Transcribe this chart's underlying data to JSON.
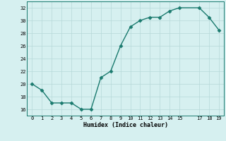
{
  "title": "",
  "xlabel": "Humidex (Indice chaleur)",
  "x_data": [
    0,
    1,
    2,
    3,
    4,
    5,
    6,
    7,
    8,
    9,
    10,
    11,
    12,
    13,
    14,
    15,
    17,
    18,
    19
  ],
  "y_data": [
    20,
    19,
    17,
    17,
    17,
    16,
    16,
    21,
    22,
    26,
    29,
    30,
    30.5,
    30.5,
    31.5,
    32,
    32,
    30.5,
    28.5
  ],
  "xlim": [
    -0.5,
    19.5
  ],
  "ylim": [
    15,
    33
  ],
  "xticks": [
    0,
    1,
    2,
    3,
    4,
    5,
    6,
    7,
    8,
    9,
    10,
    11,
    12,
    13,
    14,
    15,
    17,
    18,
    19
  ],
  "yticks": [
    16,
    18,
    20,
    22,
    24,
    26,
    28,
    30,
    32
  ],
  "line_color": "#1a7a6e",
  "marker": "D",
  "marker_size": 2.5,
  "bg_color": "#d6f0f0",
  "grid_color": "#b5d9d8",
  "line_width": 1.0
}
